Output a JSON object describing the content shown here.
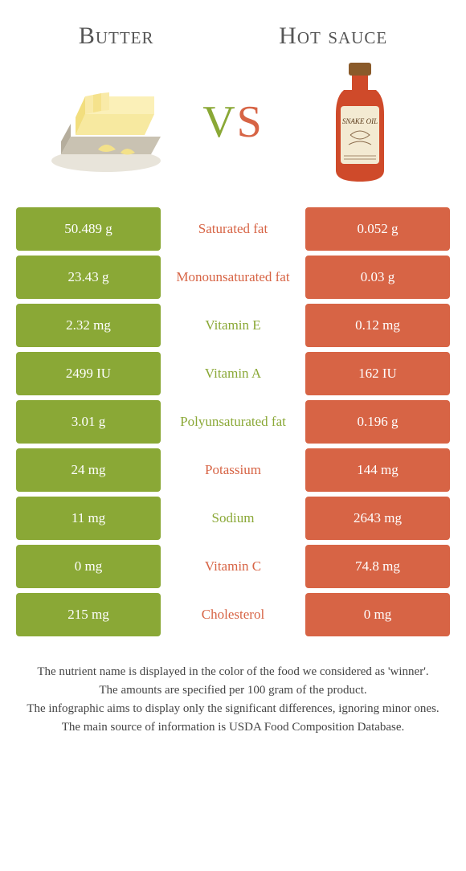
{
  "colors": {
    "left": "#8aa836",
    "right": "#d76445",
    "background": "#ffffff",
    "title": "#555555",
    "footnote": "#444444"
  },
  "left_title": "Butter",
  "right_title": "Hot sauce",
  "vs_v": "V",
  "vs_s": "S",
  "table": {
    "rows": [
      {
        "left": "50.489 g",
        "label": "Saturated fat",
        "right": "0.052 g",
        "winner": "right"
      },
      {
        "left": "23.43 g",
        "label": "Monounsaturated fat",
        "right": "0.03 g",
        "winner": "right"
      },
      {
        "left": "2.32 mg",
        "label": "Vitamin E",
        "right": "0.12 mg",
        "winner": "left"
      },
      {
        "left": "2499 IU",
        "label": "Vitamin A",
        "right": "162 IU",
        "winner": "left"
      },
      {
        "left": "3.01 g",
        "label": "Polyunsaturated fat",
        "right": "0.196 g",
        "winner": "left"
      },
      {
        "left": "24 mg",
        "label": "Potassium",
        "right": "144 mg",
        "winner": "right"
      },
      {
        "left": "11 mg",
        "label": "Sodium",
        "right": "2643 mg",
        "winner": "left"
      },
      {
        "left": "0 mg",
        "label": "Vitamin C",
        "right": "74.8 mg",
        "winner": "right"
      },
      {
        "left": "215 mg",
        "label": "Cholesterol",
        "right": "0 mg",
        "winner": "right"
      }
    ]
  },
  "footnotes": [
    "The nutrient name is displayed in the color of the food we considered as 'winner'.",
    "The amounts are specified per 100 gram of the product.",
    "The infographic aims to display only the significant differences, ignoring minor ones.",
    "The main source of information is USDA Food Composition Database."
  ]
}
